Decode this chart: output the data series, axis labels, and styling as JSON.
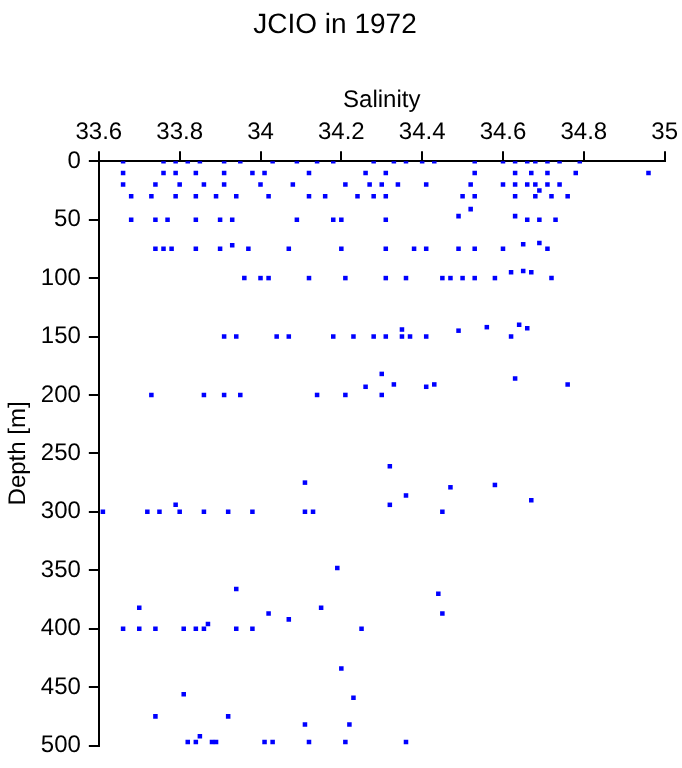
{
  "chart_data": {
    "type": "scatter",
    "title": "JCIO in 1972",
    "xlabel": "Salinity",
    "ylabel": "Depth [m]",
    "xlim": [
      33.6,
      35
    ],
    "xticks": [
      33.6,
      33.8,
      34,
      34.2,
      34.4,
      34.6,
      34.8,
      35
    ],
    "ylim": [
      500,
      0
    ],
    "yticks": [
      0,
      50,
      100,
      150,
      200,
      250,
      300,
      350,
      400,
      450,
      500
    ],
    "color": "#0000ff",
    "marker": "square",
    "grid": false,
    "legend": false,
    "x": [
      33.66,
      33.76,
      33.79,
      33.82,
      33.85,
      33.91,
      33.95,
      34.03,
      34.09,
      34.14,
      34.18,
      34.28,
      34.33,
      34.36,
      34.4,
      34.43,
      34.53,
      34.6,
      34.63,
      34.66,
      34.68,
      34.71,
      34.74,
      34.79,
      33.66,
      33.76,
      33.79,
      33.84,
      33.91,
      33.98,
      34.01,
      34.12,
      34.26,
      34.31,
      34.53,
      34.63,
      34.67,
      34.71,
      34.78,
      34.96,
      33.66,
      33.74,
      33.8,
      33.86,
      33.91,
      34.0,
      34.08,
      34.21,
      34.27,
      34.3,
      34.34,
      34.41,
      34.52,
      34.6,
      34.63,
      34.66,
      34.68,
      34.71,
      34.74,
      34.69,
      33.68,
      33.73,
      33.79,
      33.84,
      33.89,
      33.94,
      34.02,
      34.12,
      34.16,
      34.24,
      34.28,
      34.31,
      34.5,
      34.53,
      34.63,
      34.68,
      34.72,
      34.76,
      34.52,
      34.49,
      34.63,
      33.68,
      33.74,
      33.77,
      33.84,
      33.9,
      33.93,
      34.09,
      34.18,
      34.2,
      34.31,
      34.66,
      34.69,
      34.73,
      33.74,
      33.76,
      33.78,
      33.84,
      33.9,
      33.97,
      34.07,
      34.2,
      34.31,
      34.38,
      34.41,
      34.49,
      34.53,
      34.6,
      34.71,
      33.93,
      34.65,
      34.69,
      33.96,
      34.0,
      34.02,
      34.12,
      34.21,
      34.31,
      34.36,
      34.45,
      34.47,
      34.5,
      34.53,
      34.58,
      34.72,
      34.62,
      34.65,
      34.67,
      34.64,
      33.91,
      33.94,
      34.04,
      34.07,
      34.18,
      34.23,
      34.28,
      34.31,
      34.35,
      34.37,
      34.41,
      34.62,
      34.35,
      34.49,
      34.56,
      34.66,
      33.73,
      33.86,
      33.91,
      33.95,
      34.14,
      34.21,
      34.3,
      34.26,
      34.41,
      34.33,
      34.43,
      34.76,
      34.3,
      34.63,
      33.61,
      33.72,
      33.75,
      33.8,
      33.86,
      33.92,
      33.98,
      34.11,
      34.13,
      34.45,
      33.79,
      34.32,
      34.11,
      34.32,
      34.36,
      34.47,
      34.58,
      34.67,
      34.19,
      34.44,
      34.45,
      34.02,
      33.94,
      33.7,
      34.15,
      34.07,
      33.87,
      33.66,
      33.7,
      33.74,
      33.81,
      33.84,
      33.86,
      33.94,
      33.98,
      34.25,
      34.2,
      34.23,
      33.81,
      33.74,
      33.92,
      34.11,
      34.22,
      33.82,
      33.84,
      33.88,
      33.89,
      34.01,
      34.03,
      34.12,
      34.21,
      34.36,
      33.85
    ],
    "values": [
      0,
      0,
      0,
      0,
      0,
      0,
      0,
      0,
      0,
      0,
      0,
      0,
      0,
      0,
      0,
      0,
      0,
      0,
      0,
      0,
      0,
      0,
      0,
      0,
      10,
      10,
      10,
      10,
      10,
      10,
      10,
      10,
      10,
      10,
      10,
      10,
      10,
      10,
      10,
      10,
      20,
      20,
      20,
      20,
      20,
      20,
      20,
      20,
      20,
      20,
      20,
      20,
      20,
      20,
      20,
      20,
      20,
      20,
      20,
      25,
      30,
      30,
      30,
      30,
      30,
      30,
      30,
      30,
      30,
      30,
      30,
      30,
      30,
      30,
      30,
      30,
      30,
      30,
      41,
      47,
      47,
      50,
      50,
      50,
      50,
      50,
      50,
      50,
      50,
      50,
      50,
      50,
      50,
      50,
      75,
      75,
      75,
      75,
      75,
      75,
      75,
      75,
      75,
      75,
      75,
      75,
      75,
      75,
      75,
      72,
      71,
      70,
      100,
      100,
      100,
      100,
      100,
      100,
      100,
      100,
      100,
      100,
      100,
      100,
      100,
      95,
      94,
      95,
      140,
      150,
      150,
      150,
      150,
      150,
      150,
      150,
      150,
      150,
      150,
      150,
      150,
      144,
      145,
      142,
      143,
      200,
      200,
      200,
      200,
      200,
      200,
      200,
      193,
      193,
      191,
      191,
      191,
      182,
      186,
      300,
      300,
      300,
      300,
      300,
      300,
      300,
      300,
      300,
      300,
      294,
      294,
      275,
      261,
      286,
      279,
      277,
      290,
      348,
      370,
      387,
      387,
      366,
      382,
      382,
      392,
      396,
      400,
      400,
      400,
      400,
      400,
      400,
      400,
      400,
      400,
      434,
      459,
      456,
      475,
      475,
      482,
      482,
      497,
      497,
      497,
      497,
      497,
      497,
      497,
      497,
      497,
      492
    ]
  }
}
